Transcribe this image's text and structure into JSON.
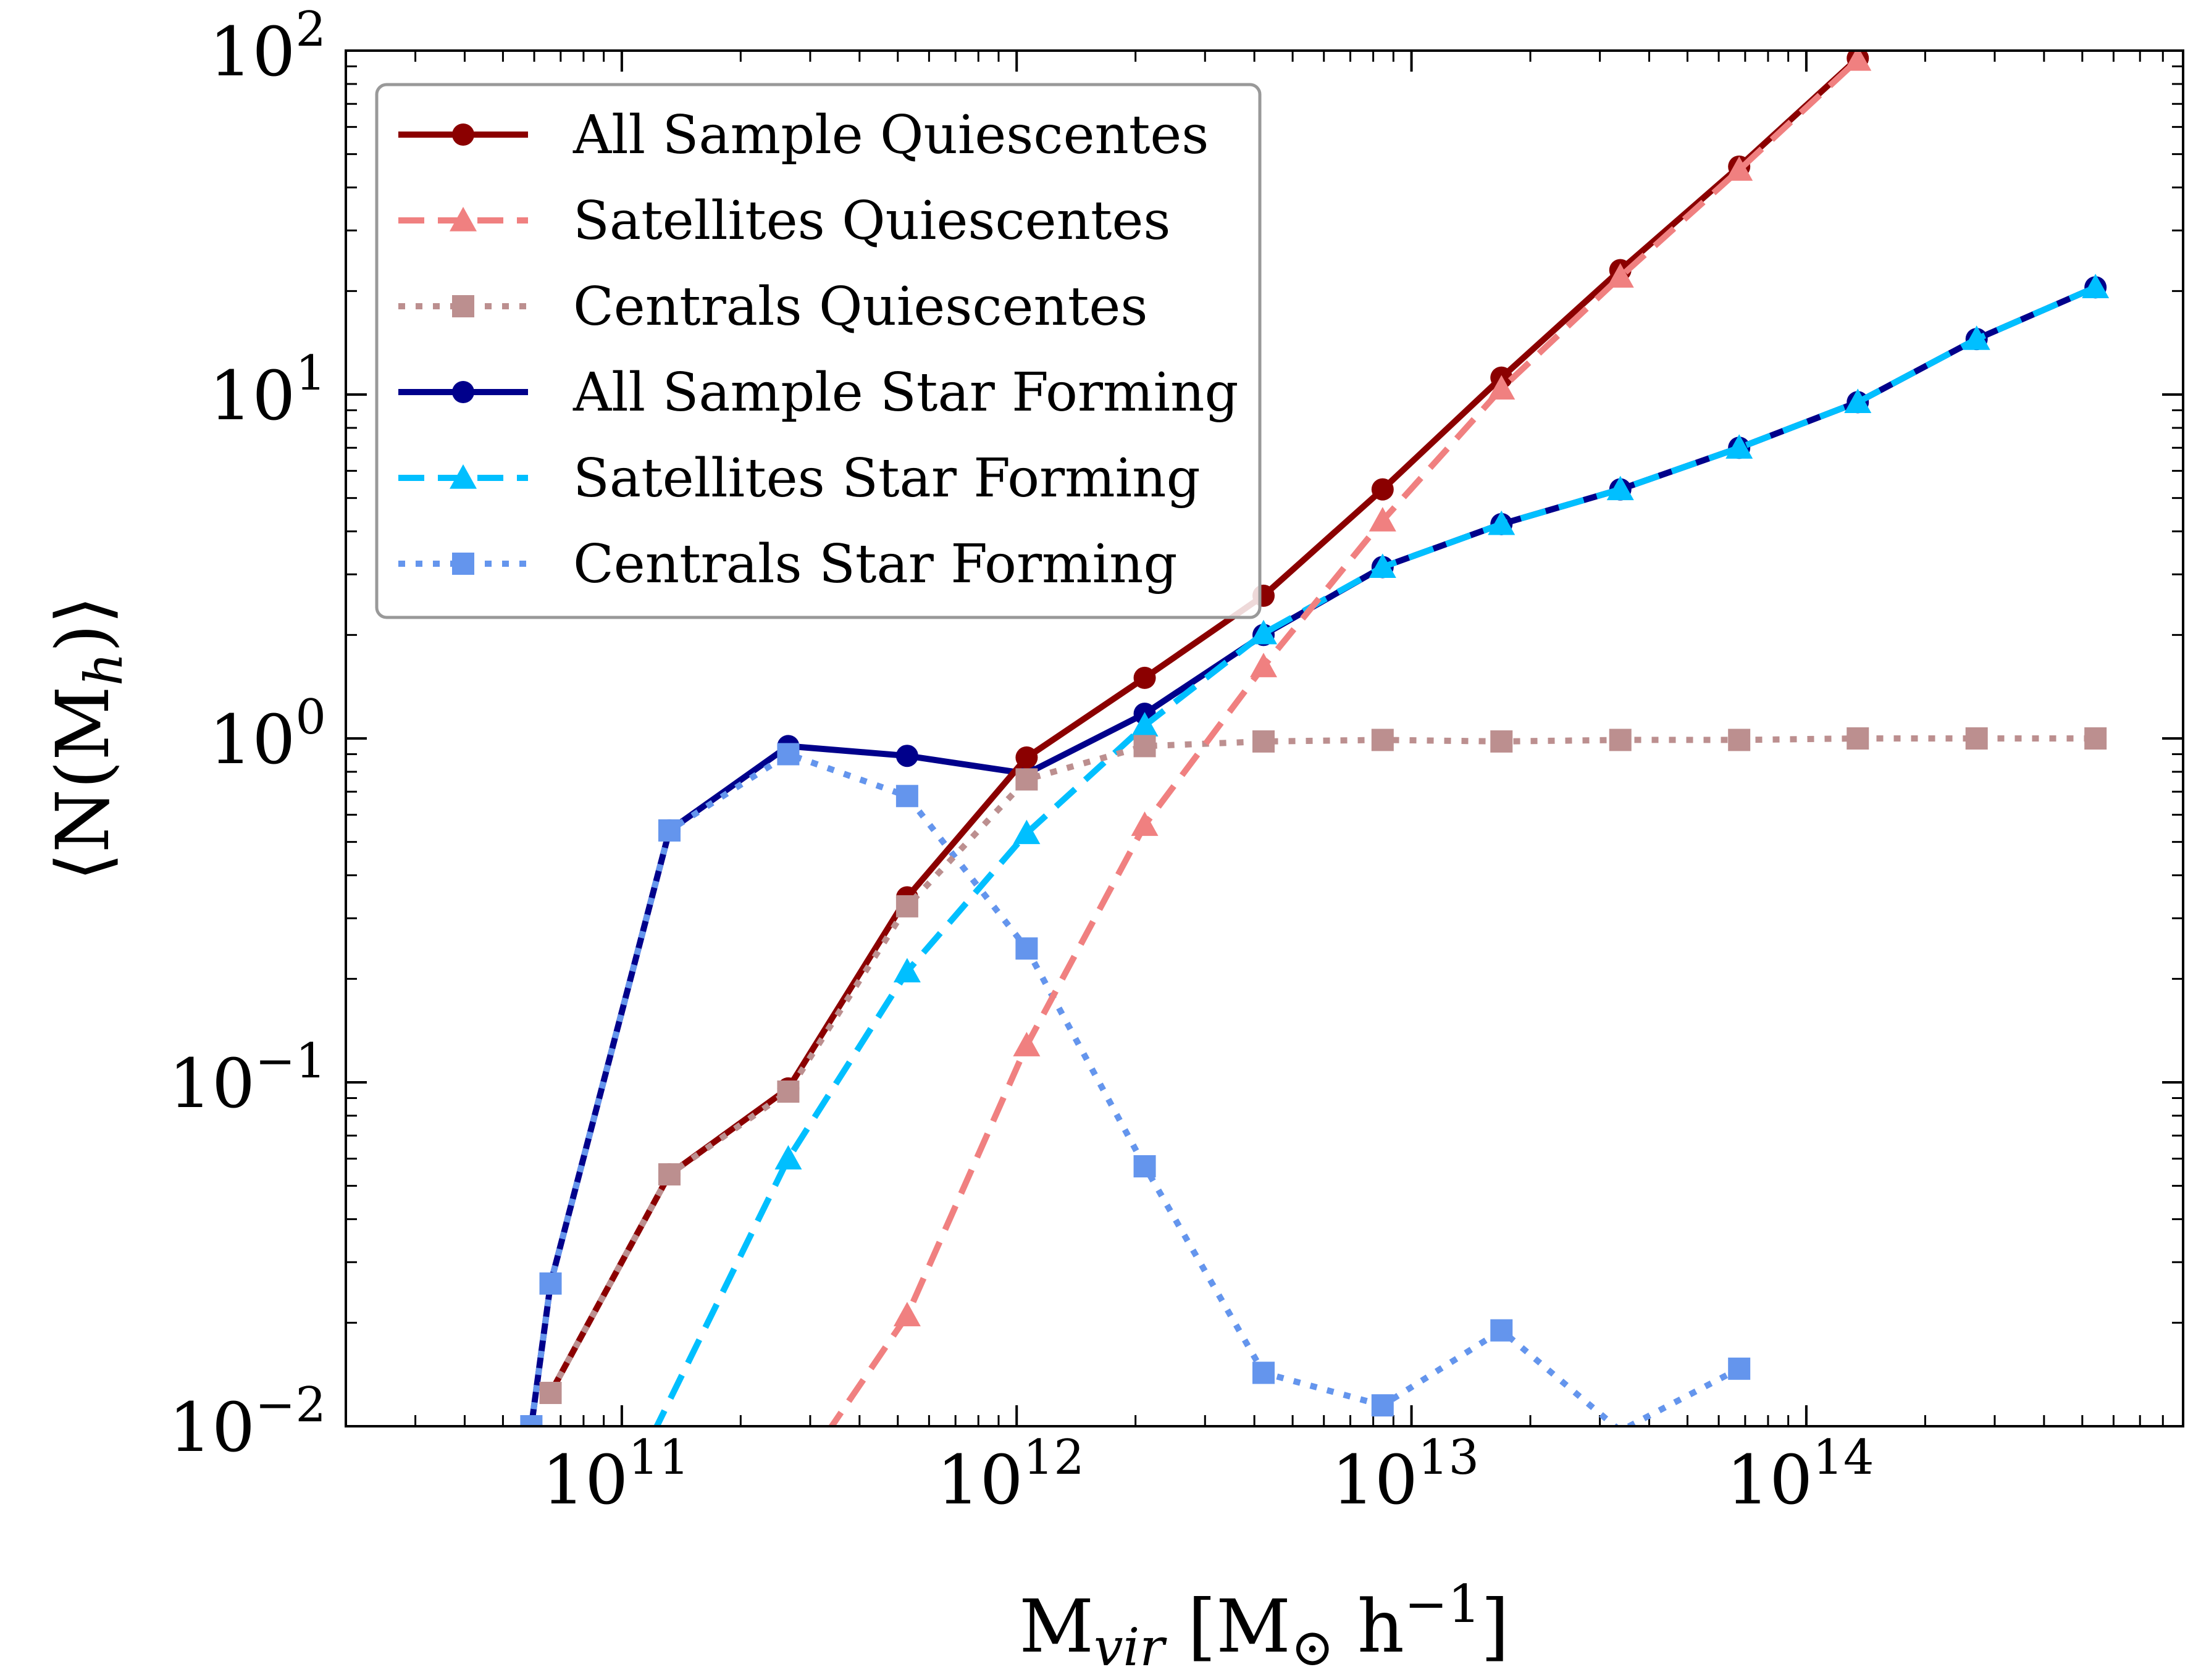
{
  "chart_data": {
    "type": "line",
    "xscale": "log",
    "yscale": "log",
    "xlim": [
      20000000000.0,
      900000000000000.0
    ],
    "ylim": [
      0.01,
      100
    ],
    "xlabel": {
      "base": "M",
      "sub": "vir",
      "rest": " [M",
      "sun": "⊙",
      "h": " h",
      "sup": "−1",
      "close": "]"
    },
    "ylabel": {
      "open": "⟨N(M",
      "sub": "h",
      "close": ")⟩"
    },
    "grid": false,
    "legend_position": "upper-left",
    "x_ticks": [
      {
        "value": 100000000000.0,
        "base": "10",
        "exp": "11"
      },
      {
        "value": 1000000000000.0,
        "base": "10",
        "exp": "12"
      },
      {
        "value": 10000000000000.0,
        "base": "10",
        "exp": "13"
      },
      {
        "value": 100000000000000.0,
        "base": "10",
        "exp": "14"
      }
    ],
    "y_ticks": [
      {
        "value": 0.01,
        "base": "10",
        "exp": "−2"
      },
      {
        "value": 0.1,
        "base": "10",
        "exp": "−1"
      },
      {
        "value": 1,
        "base": "10",
        "exp": "0"
      },
      {
        "value": 10,
        "base": "10",
        "exp": "1"
      },
      {
        "value": 100,
        "base": "10",
        "exp": "2"
      }
    ],
    "series": [
      {
        "name": "All Sample Quiescentes",
        "color": "#8b0000",
        "linestyle": "solid",
        "marker": "circle",
        "x": [
          66000000000.0,
          132000000000.0,
          264000000000.0,
          528000000000.0,
          1060000000000.0,
          2110000000000.0,
          4220000000000.0,
          8450000000000.0,
          16900000000000.0,
          33800000000000.0,
          67600000000000.0,
          135000000000000.0
        ],
        "y": [
          0.0125,
          0.054,
          0.096,
          0.345,
          0.88,
          1.5,
          2.6,
          5.3,
          11.2,
          23,
          46,
          95
        ]
      },
      {
        "name": "Satellites Quiescentes",
        "color": "#f08080",
        "linestyle": "dashed",
        "marker": "triangle",
        "x": [
          330000000000.0,
          528000000000.0,
          1060000000000.0,
          2110000000000.0,
          4220000000000.0,
          8450000000000.0,
          16900000000000.0,
          33800000000000.0,
          67600000000000.0,
          135000000000000.0
        ],
        "y": [
          0.0095,
          0.021,
          0.128,
          0.56,
          1.62,
          4.3,
          10.4,
          22,
          45,
          94
        ]
      },
      {
        "name": "Centrals Quiescentes",
        "color": "#bc8f8f",
        "linestyle": "dotted",
        "marker": "square",
        "x": [
          66000000000.0,
          132000000000.0,
          264000000000.0,
          528000000000.0,
          1060000000000.0,
          2110000000000.0,
          4220000000000.0,
          8450000000000.0,
          16900000000000.0,
          33800000000000.0,
          67600000000000.0,
          135000000000000.0,
          270000000000000.0,
          540000000000000.0
        ],
        "y": [
          0.0125,
          0.054,
          0.094,
          0.325,
          0.76,
          0.95,
          0.98,
          0.99,
          0.98,
          0.99,
          0.99,
          1.0,
          1.0,
          1.0
        ]
      },
      {
        "name": "All Sample Star Forming",
        "color": "#00008b",
        "linestyle": "solid",
        "marker": "circle",
        "x": [
          59000000000.0,
          66000000000.0,
          132000000000.0,
          264000000000.0,
          528000000000.0,
          1060000000000.0,
          2110000000000.0,
          4220000000000.0,
          8450000000000.0,
          16900000000000.0,
          33800000000000.0,
          67600000000000.0,
          135000000000000.0,
          270000000000000.0,
          540000000000000.0
        ],
        "y": [
          0.01,
          0.026,
          0.54,
          0.95,
          0.89,
          0.79,
          1.18,
          2.0,
          3.15,
          4.2,
          5.3,
          7.0,
          9.5,
          14.5,
          20.5
        ]
      },
      {
        "name": "Satellites Star Forming",
        "color": "#00bfff",
        "linestyle": "dashed",
        "marker": "triangle",
        "x": [
          120000000000.0,
          264000000000.0,
          528000000000.0,
          1060000000000.0,
          2110000000000.0,
          4220000000000.0,
          8450000000000.0,
          16900000000000.0,
          33800000000000.0,
          67600000000000.0,
          135000000000000.0,
          270000000000000.0,
          540000000000000.0
        ],
        "y": [
          0.0095,
          0.06,
          0.21,
          0.53,
          1.09,
          2.02,
          3.15,
          4.2,
          5.3,
          7.0,
          9.5,
          14.5,
          20.5
        ]
      },
      {
        "name": "Centrals Star Forming",
        "color": "#6495ed",
        "linestyle": "dotted",
        "marker": "square",
        "x": [
          59000000000.0,
          66000000000.0,
          132000000000.0,
          264000000000.0,
          528000000000.0,
          1060000000000.0,
          2110000000000.0,
          4220000000000.0,
          8450000000000.0,
          16900000000000.0,
          33800000000000.0,
          67600000000000.0
        ],
        "y": [
          0.01,
          0.026,
          0.54,
          0.9,
          0.68,
          0.245,
          0.057,
          0.0143,
          0.0115,
          0.019,
          0.0097,
          0.0147
        ]
      }
    ]
  }
}
